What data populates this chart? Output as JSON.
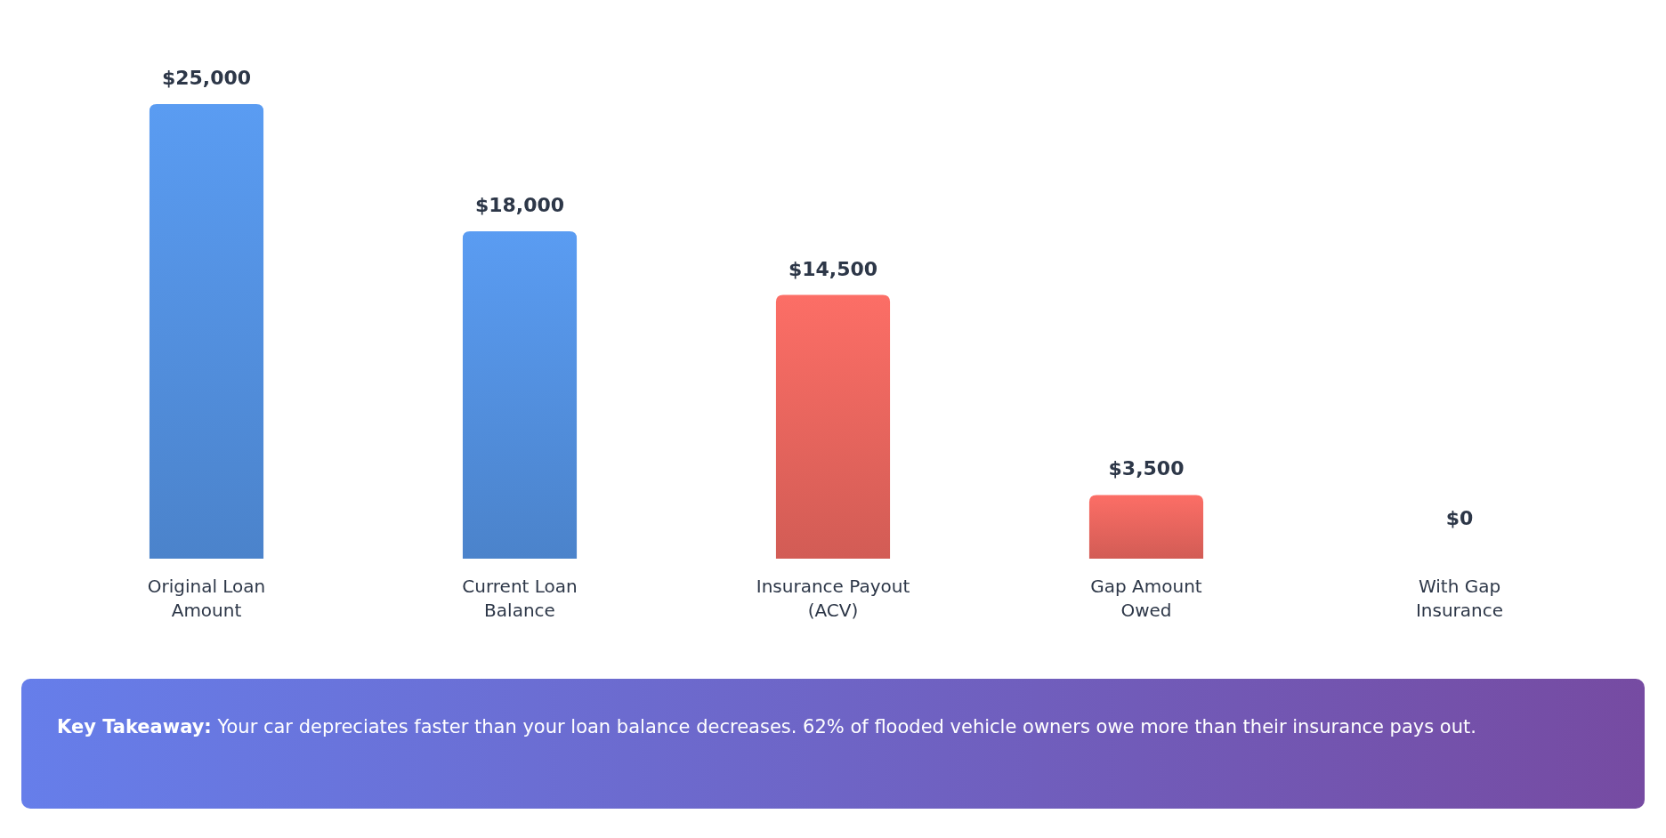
{
  "chart_data": {
    "type": "bar",
    "categories": [
      "Original Loan Amount",
      "Current Loan Balance",
      "Insurance Payout (ACV)",
      "Gap Amount Owed",
      "With Gap Insurance"
    ],
    "values": [
      25000,
      18000,
      14500,
      3500,
      0
    ],
    "colors": [
      "#4f8ad6",
      "#4f8ad6",
      "#de615a",
      "#de615a",
      "#5fae6f"
    ],
    "value_labels": [
      "$25,000",
      "$18,000",
      "$14,500",
      "$3,500",
      "$0"
    ],
    "annotations": [
      "Key Takeaway: Your car depreciates faster than your loan balance decreases. 62% of flooded vehicle owners owe more than their insurance pays out."
    ]
  }
}
